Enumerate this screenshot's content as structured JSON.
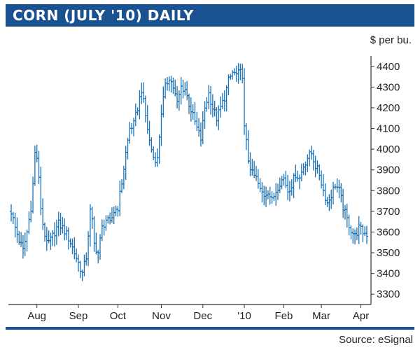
{
  "title": "CORN (JULY '10) DAILY",
  "source": "Source: eSignal",
  "colors": {
    "title_bar": "#1a5291",
    "title_text": "#ffffff",
    "bars": "#1a72b8",
    "axis": "#333333",
    "text": "#222222"
  },
  "chart_data": {
    "type": "ohlc",
    "title": "CORN (JULY '10) DAILY",
    "ylabel": "$ per bu.",
    "ylim": [
      3250,
      4450
    ],
    "yticks": [
      4400,
      4300,
      4200,
      4100,
      4000,
      3900,
      3800,
      3700,
      3600,
      3500,
      3400,
      3300
    ],
    "xlim": [
      0,
      180
    ],
    "xticks": [
      {
        "label": "Aug",
        "t": 13
      },
      {
        "label": "Sep",
        "t": 34
      },
      {
        "label": "Oct",
        "t": 54
      },
      {
        "label": "Nov",
        "t": 76
      },
      {
        "label": "Dec",
        "t": 97
      },
      {
        "label": "'10",
        "t": 118
      },
      {
        "label": "Feb",
        "t": 138
      },
      {
        "label": "Mar",
        "t": 157
      },
      {
        "label": "Apr",
        "t": 177
      }
    ],
    "grid": false,
    "y_axis_side": "right",
    "anchors": [
      [
        0,
        3700
      ],
      [
        2,
        3620
      ],
      [
        4,
        3560
      ],
      [
        6,
        3510
      ],
      [
        8,
        3600
      ],
      [
        10,
        3720
      ],
      [
        11,
        3830
      ],
      [
        12,
        3980
      ],
      [
        13,
        3960
      ],
      [
        14,
        3850
      ],
      [
        15,
        3720
      ],
      [
        16,
        3640
      ],
      [
        17,
        3590
      ],
      [
        18,
        3540
      ],
      [
        20,
        3560
      ],
      [
        22,
        3600
      ],
      [
        24,
        3640
      ],
      [
        26,
        3620
      ],
      [
        28,
        3590
      ],
      [
        30,
        3550
      ],
      [
        32,
        3500
      ],
      [
        34,
        3450
      ],
      [
        36,
        3400
      ],
      [
        38,
        3480
      ],
      [
        40,
        3700
      ],
      [
        41,
        3650
      ],
      [
        42,
        3540
      ],
      [
        44,
        3500
      ],
      [
        46,
        3620
      ],
      [
        48,
        3660
      ],
      [
        50,
        3640
      ],
      [
        52,
        3700
      ],
      [
        54,
        3720
      ],
      [
        56,
        3840
      ],
      [
        58,
        3980
      ],
      [
        60,
        4100
      ],
      [
        62,
        4120
      ],
      [
        64,
        4200
      ],
      [
        66,
        4290
      ],
      [
        68,
        4160
      ],
      [
        70,
        4040
      ],
      [
        72,
        3960
      ],
      [
        74,
        3950
      ],
      [
        76,
        4180
      ],
      [
        78,
        4300
      ],
      [
        80,
        4350
      ],
      [
        82,
        4300
      ],
      [
        84,
        4220
      ],
      [
        86,
        4300
      ],
      [
        88,
        4290
      ],
      [
        90,
        4220
      ],
      [
        92,
        4160
      ],
      [
        94,
        4100
      ],
      [
        96,
        4050
      ],
      [
        98,
        4200
      ],
      [
        100,
        4270
      ],
      [
        102,
        4200
      ],
      [
        104,
        4150
      ],
      [
        106,
        4200
      ],
      [
        108,
        4250
      ],
      [
        110,
        4330
      ],
      [
        112,
        4370
      ],
      [
        114,
        4360
      ],
      [
        116,
        4370
      ],
      [
        117,
        4360
      ],
      [
        118,
        4100
      ],
      [
        119,
        4030
      ],
      [
        120,
        3950
      ],
      [
        122,
        3880
      ],
      [
        124,
        3860
      ],
      [
        126,
        3800
      ],
      [
        128,
        3780
      ],
      [
        130,
        3800
      ],
      [
        132,
        3750
      ],
      [
        134,
        3800
      ],
      [
        136,
        3840
      ],
      [
        138,
        3860
      ],
      [
        140,
        3800
      ],
      [
        142,
        3830
      ],
      [
        144,
        3880
      ],
      [
        146,
        3860
      ],
      [
        148,
        3920
      ],
      [
        150,
        3960
      ],
      [
        152,
        3980
      ],
      [
        154,
        3920
      ],
      [
        156,
        3880
      ],
      [
        158,
        3800
      ],
      [
        160,
        3740
      ],
      [
        162,
        3780
      ],
      [
        164,
        3830
      ],
      [
        166,
        3800
      ],
      [
        168,
        3720
      ],
      [
        170,
        3660
      ],
      [
        172,
        3610
      ],
      [
        174,
        3580
      ],
      [
        176,
        3620
      ],
      [
        178,
        3600
      ],
      [
        180,
        3590
      ]
    ]
  }
}
